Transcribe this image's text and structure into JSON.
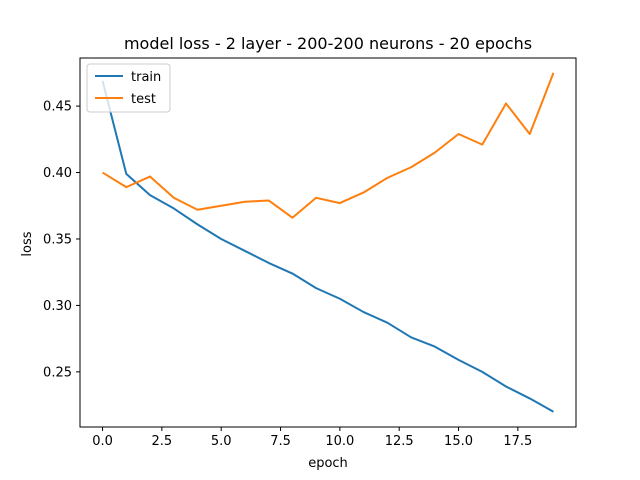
{
  "chart_data": {
    "type": "line",
    "title": "model loss - 2 layer - 200-200 neurons - 20 epochs",
    "xlabel": "epoch",
    "ylabel": "loss",
    "x": [
      0,
      1,
      2,
      3,
      4,
      5,
      6,
      7,
      8,
      9,
      10,
      11,
      12,
      13,
      14,
      15,
      16,
      17,
      18,
      19
    ],
    "xlim": [
      -0.95,
      19.95
    ],
    "ylim": [
      0.2085,
      0.4862
    ],
    "xticks": [
      0.0,
      2.5,
      5.0,
      7.5,
      10.0,
      12.5,
      15.0,
      17.5
    ],
    "xtick_labels": [
      "0.0",
      "2.5",
      "5.0",
      "7.5",
      "10.0",
      "12.5",
      "15.0",
      "17.5"
    ],
    "yticks": [
      0.25,
      0.3,
      0.35,
      0.4,
      0.45
    ],
    "ytick_labels": [
      "0.25",
      "0.30",
      "0.35",
      "0.40",
      "0.45"
    ],
    "grid": false,
    "legend_position": "top-left",
    "series": [
      {
        "name": "train",
        "color": "#1f77b4",
        "values": [
          0.469,
          0.399,
          0.383,
          0.373,
          0.361,
          0.35,
          0.341,
          0.332,
          0.324,
          0.313,
          0.305,
          0.295,
          0.287,
          0.276,
          0.269,
          0.259,
          0.25,
          0.239,
          0.23,
          0.22
        ]
      },
      {
        "name": "test",
        "color": "#ff7f0e",
        "values": [
          0.4,
          0.389,
          0.397,
          0.381,
          0.372,
          0.375,
          0.378,
          0.379,
          0.366,
          0.381,
          0.377,
          0.385,
          0.396,
          0.404,
          0.415,
          0.429,
          0.421,
          0.452,
          0.429,
          0.475
        ]
      }
    ]
  }
}
